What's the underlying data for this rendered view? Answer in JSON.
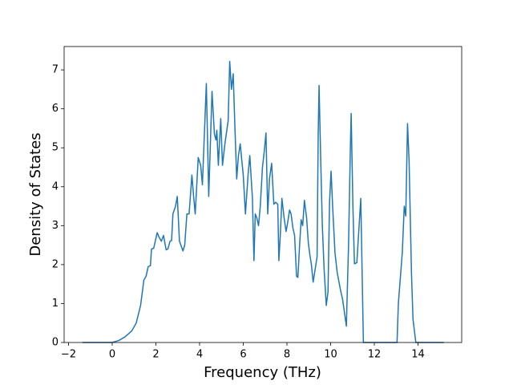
{
  "chart_data": {
    "type": "line",
    "xlabel": "Frequency (THz)",
    "ylabel": "Density of States",
    "color": "#1f77b4",
    "x": [
      -1.36,
      0,
      0.3,
      0.6,
      0.9,
      1.1,
      1.3,
      1.45,
      1.55,
      1.65,
      1.75,
      1.8,
      1.9,
      2.06,
      2.15,
      2.25,
      2.35,
      2.47,
      2.55,
      2.65,
      2.72,
      2.78,
      2.9,
      2.98,
      3.08,
      3.24,
      3.32,
      3.42,
      3.52,
      3.65,
      3.72,
      3.8,
      3.94,
      4.05,
      4.13,
      4.31,
      4.42,
      4.57,
      4.68,
      4.75,
      4.79,
      4.86,
      4.97,
      5.05,
      5.16,
      5.31,
      5.38,
      5.46,
      5.54,
      5.62,
      5.7,
      5.78,
      5.86,
      6.0,
      6.1,
      6.22,
      6.3,
      6.42,
      6.49,
      6.55,
      6.62,
      6.7,
      6.78,
      6.88,
      6.96,
      7.04,
      7.12,
      7.2,
      7.3,
      7.4,
      7.48,
      7.58,
      7.63,
      7.7,
      7.77,
      7.87,
      7.96,
      8.04,
      8.12,
      8.19,
      8.27,
      8.35,
      8.44,
      8.5,
      8.58,
      8.65,
      8.72,
      8.8,
      8.9,
      8.98,
      9.05,
      9.12,
      9.2,
      9.38,
      9.43,
      9.47,
      9.55,
      9.62,
      9.7,
      9.8,
      9.88,
      9.95,
      10.02,
      10.1,
      10.2,
      10.3,
      10.45,
      10.55,
      10.65,
      10.72,
      10.82,
      10.9,
      10.94,
      11.02,
      11.09,
      11.2,
      11.38,
      11.5,
      13.04,
      13.1,
      13.28,
      13.37,
      13.44,
      13.52,
      13.59,
      13.7,
      13.77,
      13.9,
      15.18
    ],
    "values": [
      0,
      0,
      0.05,
      0.15,
      0.3,
      0.5,
      0.95,
      1.6,
      1.7,
      1.95,
      1.97,
      2.4,
      2.42,
      2.82,
      2.7,
      2.6,
      2.75,
      2.38,
      2.4,
      2.6,
      2.62,
      3.3,
      3.5,
      3.75,
      2.6,
      2.35,
      2.5,
      3.3,
      3.3,
      4.3,
      3.8,
      3.3,
      4.75,
      4.55,
      4.05,
      6.65,
      3.75,
      6.45,
      5.35,
      5.2,
      5.45,
      4.55,
      5.75,
      4.55,
      5.1,
      5.7,
      7.22,
      6.5,
      6.9,
      5.5,
      4.2,
      4.8,
      5.1,
      4.3,
      3.3,
      4.3,
      4.8,
      3.7,
      2.1,
      3.3,
      3.2,
      3.0,
      3.5,
      4.5,
      4.9,
      5.38,
      3.3,
      4.2,
      4.6,
      3.55,
      3.6,
      3.55,
      2.1,
      2.8,
      3.7,
      3.2,
      2.85,
      3.1,
      3.4,
      3.3,
      2.95,
      2.75,
      1.7,
      1.67,
      2.5,
      3.15,
      3.0,
      3.65,
      3.2,
      2.55,
      2.25,
      2.0,
      1.55,
      2.2,
      5.3,
      6.6,
      4.6,
      3.0,
      1.9,
      0.95,
      1.3,
      3.6,
      4.4,
      3.4,
      2.3,
      1.8,
      1.35,
      1.1,
      0.7,
      0.42,
      2.5,
      4.9,
      5.88,
      3.5,
      2.02,
      2.05,
      3.7,
      0,
      0,
      1.0,
      2.3,
      3.5,
      3.25,
      5.62,
      4.7,
      1.8,
      0.6,
      0,
      0
    ],
    "xlim": [
      -2.2,
      16.0
    ],
    "xticks": [
      {
        "value": -2,
        "label": "−2"
      },
      0,
      2,
      4,
      6,
      8,
      10,
      12,
      14
    ],
    "ylim": [
      0,
      7.6
    ],
    "yticks": [
      0,
      1,
      2,
      3,
      4,
      5,
      6,
      7
    ]
  }
}
